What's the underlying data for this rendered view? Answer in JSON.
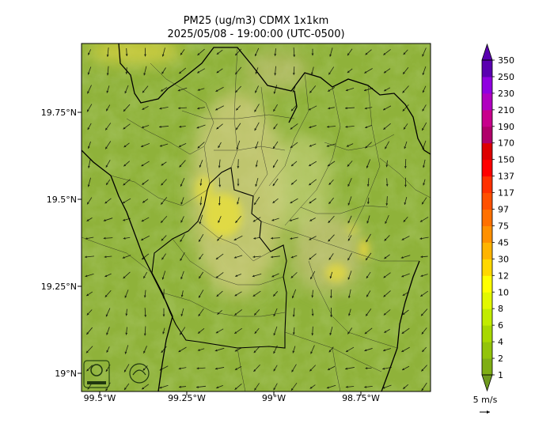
{
  "title": "PM25 (ug/m3) CDMX 1x1km",
  "subtitle": "2025/05/08 - 19:00:00 (UTC-0500)",
  "lat_ticks": [
    "19.75°N",
    "19.5°N",
    "19.25°N",
    "19°N"
  ],
  "lon_ticks": [
    "99.5°W",
    "99.25°W",
    "99°W",
    "98.75°W"
  ],
  "colorbar": {
    "levels": [
      "1",
      "2",
      "4",
      "6",
      "8",
      "10",
      "12",
      "30",
      "45",
      "75",
      "97",
      "117",
      "137",
      "150",
      "170",
      "190",
      "210",
      "230",
      "250",
      "350"
    ],
    "colors": [
      "#6e9a1e",
      "#7fae14",
      "#93c40a",
      "#a8d800",
      "#c2ec00",
      "#e2f800",
      "#ffff00",
      "#ffd800",
      "#ffb400",
      "#ff9000",
      "#ff7000",
      "#ff5000",
      "#ff3000",
      "#ff0000",
      "#dd0000",
      "#b0006a",
      "#c8008c",
      "#b000c0",
      "#9000e0",
      "#5a00b0"
    ]
  },
  "wind_reference": "5 m/s",
  "logos": [
    "sedema-logo",
    "cdmx-logo"
  ],
  "map_colors": {
    "base": "#8fb23a",
    "haze": "#d8cf8a",
    "hotspot": "#e2de3a",
    "border": "#000000"
  }
}
